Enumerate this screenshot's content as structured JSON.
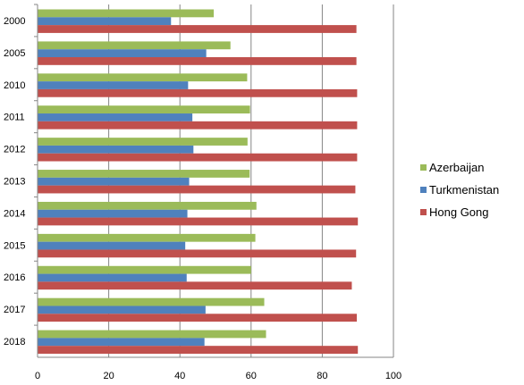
{
  "chart_data": {
    "type": "bar",
    "orientation": "horizontal",
    "title": "",
    "xlabel": "",
    "ylabel": "",
    "categories": [
      "2000",
      "2005",
      "2010",
      "2011",
      "2012",
      "2013",
      "2014",
      "2015",
      "2016",
      "2017",
      "2018"
    ],
    "xlim": [
      0,
      100
    ],
    "x_ticks": [
      "0",
      "20",
      "40",
      "60",
      "80",
      "100"
    ],
    "grid": "vertical major gridlines",
    "legend_position": "right",
    "series": [
      {
        "name": "Azerbaijan",
        "color": "#9bbb59",
        "values": [
          49.5,
          54.2,
          58.9,
          59.7,
          59.0,
          59.6,
          61.5,
          61.2,
          60.0,
          63.7,
          64.2
        ]
      },
      {
        "name": "Turkmenistan",
        "color": "#4f81bd",
        "values": [
          37.5,
          47.4,
          42.3,
          43.5,
          43.8,
          42.6,
          42.1,
          41.5,
          41.9,
          47.2,
          46.9
        ]
      },
      {
        "name": "Hong Gong",
        "color": "#c0504d",
        "values": [
          89.6,
          89.6,
          89.8,
          89.8,
          89.8,
          89.3,
          90.0,
          89.5,
          88.3,
          89.7,
          90.0
        ]
      }
    ]
  }
}
